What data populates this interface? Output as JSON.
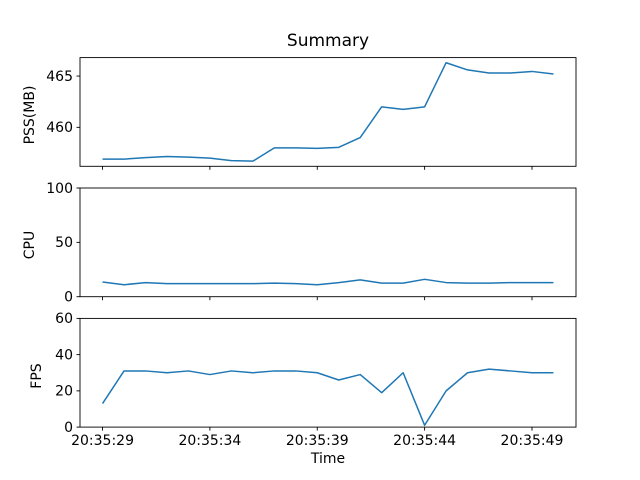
{
  "chart_data": {
    "type": "line",
    "title": "Summary",
    "xlabel": "Time",
    "legend": "none",
    "grid": false,
    "series_color": "#1f77b4",
    "background_color": "#ffffff",
    "x_seconds": [
      29,
      30,
      31,
      32,
      33,
      34,
      35,
      36,
      37,
      38,
      39,
      40,
      41,
      42,
      43,
      44,
      45,
      46,
      47,
      48,
      49,
      50
    ],
    "xlim": [
      27.95,
      51.05
    ],
    "x_tick_seconds": [
      29,
      34,
      39,
      44,
      49
    ],
    "x_tick_labels": [
      "20:35:29",
      "20:35:34",
      "20:35:39",
      "20:35:44",
      "20:35:49"
    ],
    "subplots": [
      {
        "ylabel": "PSS(MB)",
        "ylim": [
          456.2,
          466.8
        ],
        "yticks": [
          460,
          465
        ],
        "ytick_labels": [
          "460",
          "465"
        ],
        "values": [
          456.9,
          456.9,
          457.05,
          457.15,
          457.1,
          457.0,
          456.75,
          456.7,
          458.0,
          458.0,
          457.95,
          458.05,
          459.0,
          462.0,
          461.75,
          462.0,
          466.3,
          465.6,
          465.3,
          465.3,
          465.45,
          465.2
        ]
      },
      {
        "ylabel": "CPU",
        "ylim": [
          0,
          100
        ],
        "yticks": [
          0,
          50,
          100
        ],
        "ytick_labels": [
          "0",
          "50",
          "100"
        ],
        "values": [
          13.5,
          11,
          13,
          12,
          12,
          12,
          12,
          12,
          12.5,
          12,
          11,
          13,
          15.5,
          12.5,
          12.5,
          16,
          13,
          12.5,
          12.5,
          13,
          13,
          13
        ]
      },
      {
        "ylabel": "FPS",
        "ylim": [
          0,
          60
        ],
        "yticks": [
          0,
          20,
          40,
          60
        ],
        "ytick_labels": [
          "0",
          "20",
          "40",
          "60"
        ],
        "values": [
          13,
          31,
          31,
          30,
          31,
          29,
          31,
          30,
          31,
          31,
          30,
          26,
          29,
          19,
          30,
          1,
          20,
          30,
          32,
          31,
          30,
          30
        ]
      }
    ]
  }
}
